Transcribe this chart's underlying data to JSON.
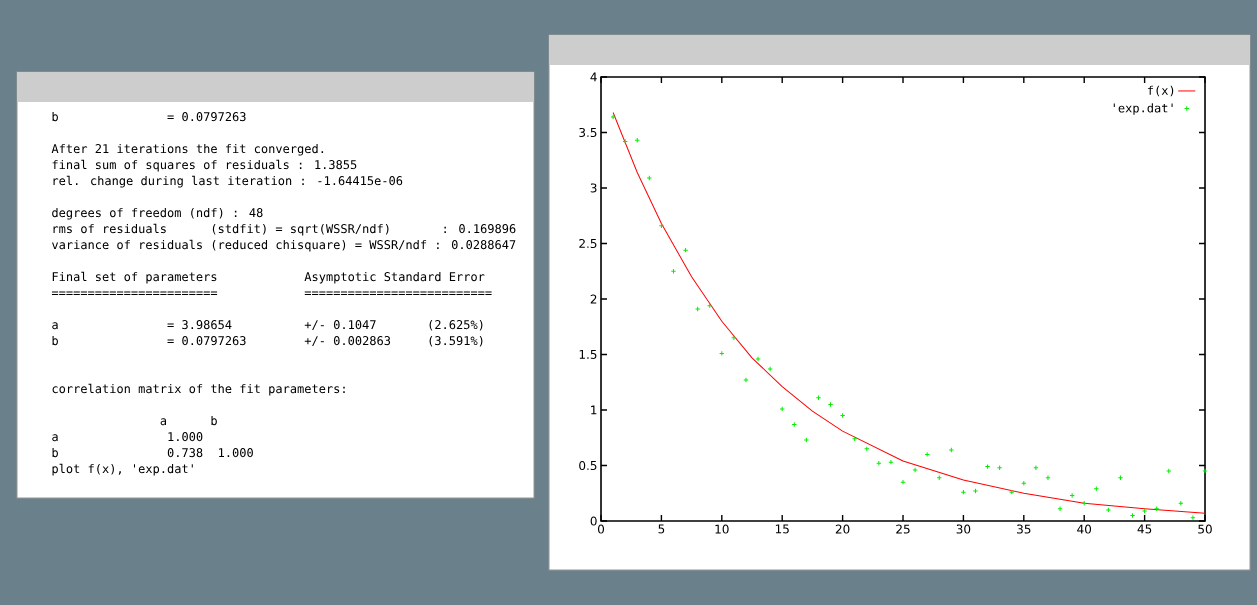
{
  "chart_data": {
    "type": "scatter",
    "xlim": [
      0,
      50
    ],
    "xticks": [
      0,
      5,
      10,
      15,
      20,
      25,
      30,
      35,
      40,
      45,
      50
    ],
    "ylim": [
      0,
      4
    ],
    "yticks": [
      0,
      0.5,
      1,
      1.5,
      2,
      2.5,
      3,
      3.5,
      4
    ],
    "legend": "top right",
    "grid": false,
    "series": [
      {
        "name": "f(x)",
        "type": "line",
        "color": "#ff0000",
        "x": [
          1,
          3,
          5,
          7.5,
          10,
          12.5,
          15,
          17.5,
          20,
          25,
          30,
          35,
          40,
          45,
          50
        ],
        "values": [
          3.68,
          3.14,
          2.68,
          2.2,
          1.8,
          1.47,
          1.21,
          0.99,
          0.81,
          0.54,
          0.37,
          0.25,
          0.16,
          0.11,
          0.07
        ]
      },
      {
        "name": "'exp.dat'",
        "marker": "cross",
        "color": "#00ee00",
        "x": [
          1,
          2,
          3,
          4,
          5,
          6,
          7,
          8,
          9,
          10,
          11,
          12,
          13,
          14,
          15,
          16,
          17,
          18,
          19,
          20,
          21,
          22,
          23,
          24,
          25,
          26,
          27,
          28,
          29,
          30,
          31,
          32,
          33,
          34,
          35,
          36,
          37,
          38,
          39,
          40,
          41,
          42,
          43,
          44,
          45,
          46,
          47,
          48,
          49,
          50
        ],
        "values": [
          3.64,
          3.42,
          3.43,
          3.09,
          2.66,
          2.25,
          2.44,
          1.91,
          1.94,
          1.51,
          1.65,
          1.27,
          1.46,
          1.37,
          1.01,
          0.87,
          0.73,
          1.11,
          1.05,
          0.95,
          0.74,
          0.65,
          0.52,
          0.53,
          0.35,
          0.46,
          0.6,
          0.39,
          0.64,
          0.26,
          0.27,
          0.49,
          0.48,
          0.26,
          0.34,
          0.48,
          0.39,
          0.11,
          0.23,
          0.16,
          0.29,
          0.1,
          0.39,
          0.05,
          0.09,
          0.11,
          0.45,
          0.16,
          0.03,
          0.45
        ]
      }
    ],
    "annotations": [
      "b               = 0.0797263",
      "After 21 iterations the fit converged.",
      "final sum of squares of residuals : 1.3855",
      "rel. change during last iteration : -1.64415e-06",
      "degrees of freedom (ndf) : 48",
      "rms of residuals      (stdfit) = sqrt(WSSR/ndf)       : 0.169896",
      "variance of residuals (reduced chisquare) = WSSR/ndf : 0.0288647",
      "Final set of parameters            Asymptotic Standard Error",
      "=======================            ==========================",
      "a               = 3.98654          +/- 0.1047       (2.625%)",
      "b               = 0.0797263        +/- 0.002863     (3.591%)",
      "correlation matrix of the fit parameters:",
      "               a      b",
      "a               1.000",
      "b               0.738  1.000",
      "plot f(x), 'exp.dat'"
    ]
  }
}
